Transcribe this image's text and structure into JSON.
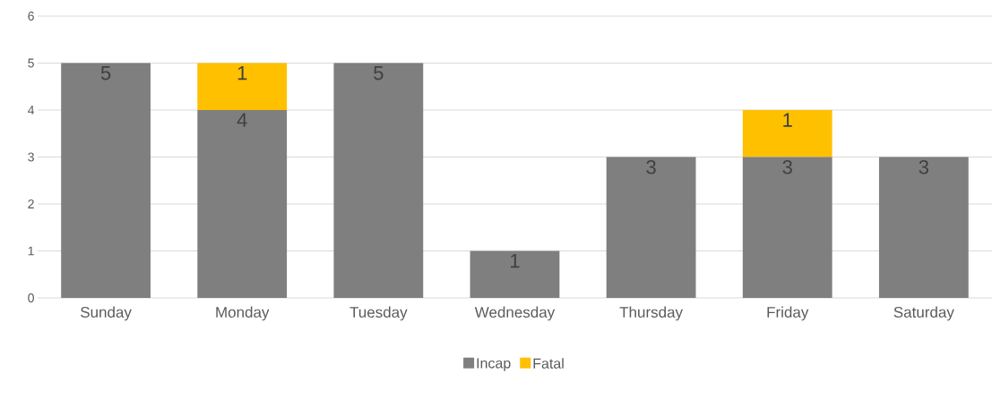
{
  "chart_data": {
    "type": "bar",
    "stacked": true,
    "categories": [
      "Sunday",
      "Monday",
      "Tuesday",
      "Wednesday",
      "Thursday",
      "Friday",
      "Saturday"
    ],
    "series": [
      {
        "name": "Incap",
        "color": "#7f7f7f",
        "values": [
          5,
          4,
          5,
          1,
          3,
          3,
          3
        ]
      },
      {
        "name": "Fatal",
        "color": "#ffc000",
        "values": [
          null,
          1,
          null,
          null,
          null,
          1,
          null
        ]
      }
    ],
    "ylim": [
      0,
      6
    ],
    "yticks": [
      0,
      1,
      2,
      3,
      4,
      5,
      6
    ],
    "grid": "y",
    "legend": "bottom",
    "data_labels": true
  }
}
